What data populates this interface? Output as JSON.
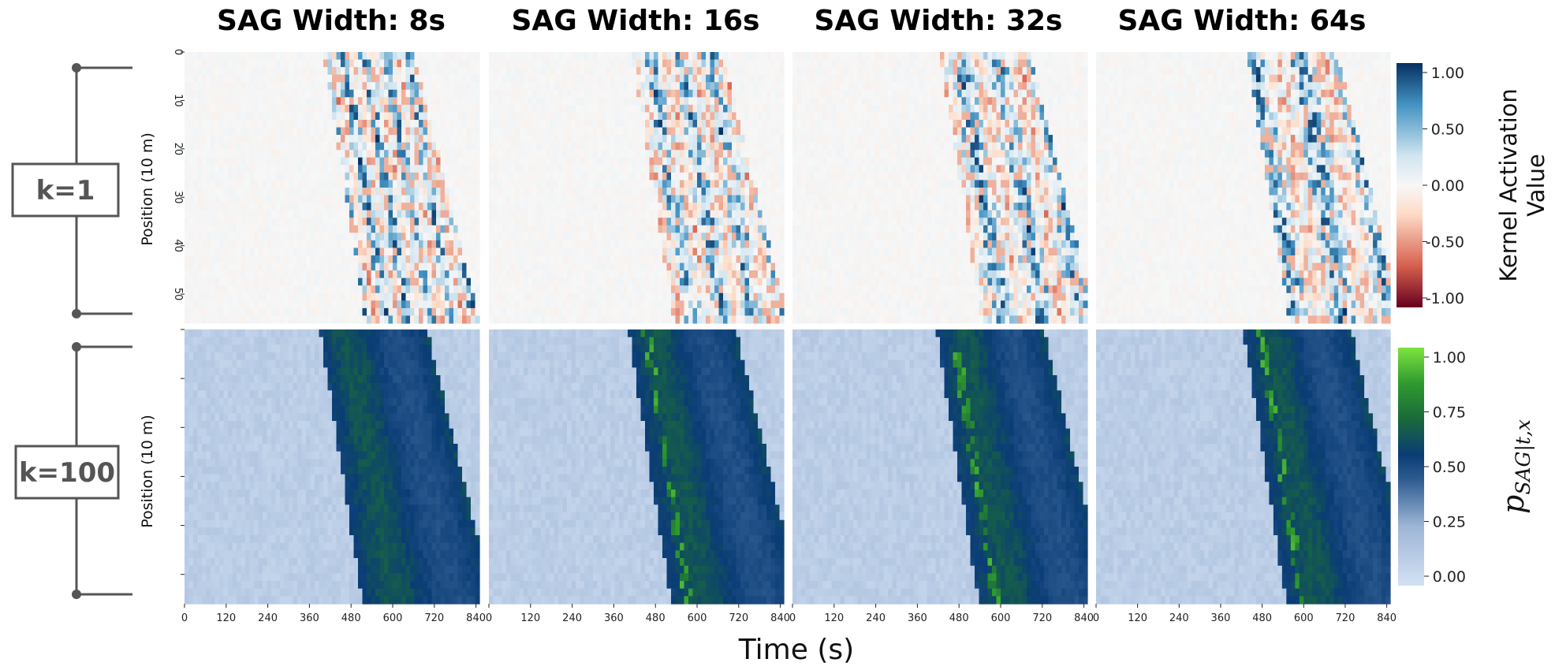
{
  "chart_data": {
    "type": "heatmap",
    "panel_titles": [
      "SAG Width: 8s",
      "SAG Width: 16s",
      "SAG Width: 32s",
      "SAG Width: 64s"
    ],
    "row_labels": [
      "k=1",
      "k=100"
    ],
    "ylabel": "Position (10 m)",
    "xlabel": "Time (s)",
    "x_ticks": [
      0,
      120,
      240,
      360,
      480,
      600,
      720,
      840
    ],
    "y_ticks": [
      0,
      10,
      20,
      30,
      40,
      50
    ],
    "xlim": [
      0,
      850
    ],
    "ylim": [
      0,
      56
    ],
    "sag_widths_s": [
      8,
      16,
      32,
      64
    ],
    "k_values": [
      1,
      100
    ],
    "colorbars": [
      {
        "label_lines": [
          "Kernel Activation",
          "Value"
        ],
        "ticks": [
          "1.00",
          "0.50",
          "0.00",
          "-0.50",
          "-1.00"
        ],
        "range": [
          -1,
          1
        ],
        "colormap": [
          "#67001f",
          "#d6604d",
          "#fddbc7",
          "#f7f7f7",
          "#d1e5f0",
          "#4393c3",
          "#053061"
        ]
      },
      {
        "label_tex": "p_{SAG|t,x}",
        "ticks": [
          "1.00",
          "0.75",
          "0.50",
          "0.25",
          "0.00"
        ],
        "range": [
          0,
          1
        ],
        "colormap": [
          "#d3e1f3",
          "#9db5d6",
          "#2c5a8f",
          "#0a3c75",
          "#1a6a3a",
          "#2f9a2f",
          "#7de43f"
        ]
      }
    ]
  }
}
